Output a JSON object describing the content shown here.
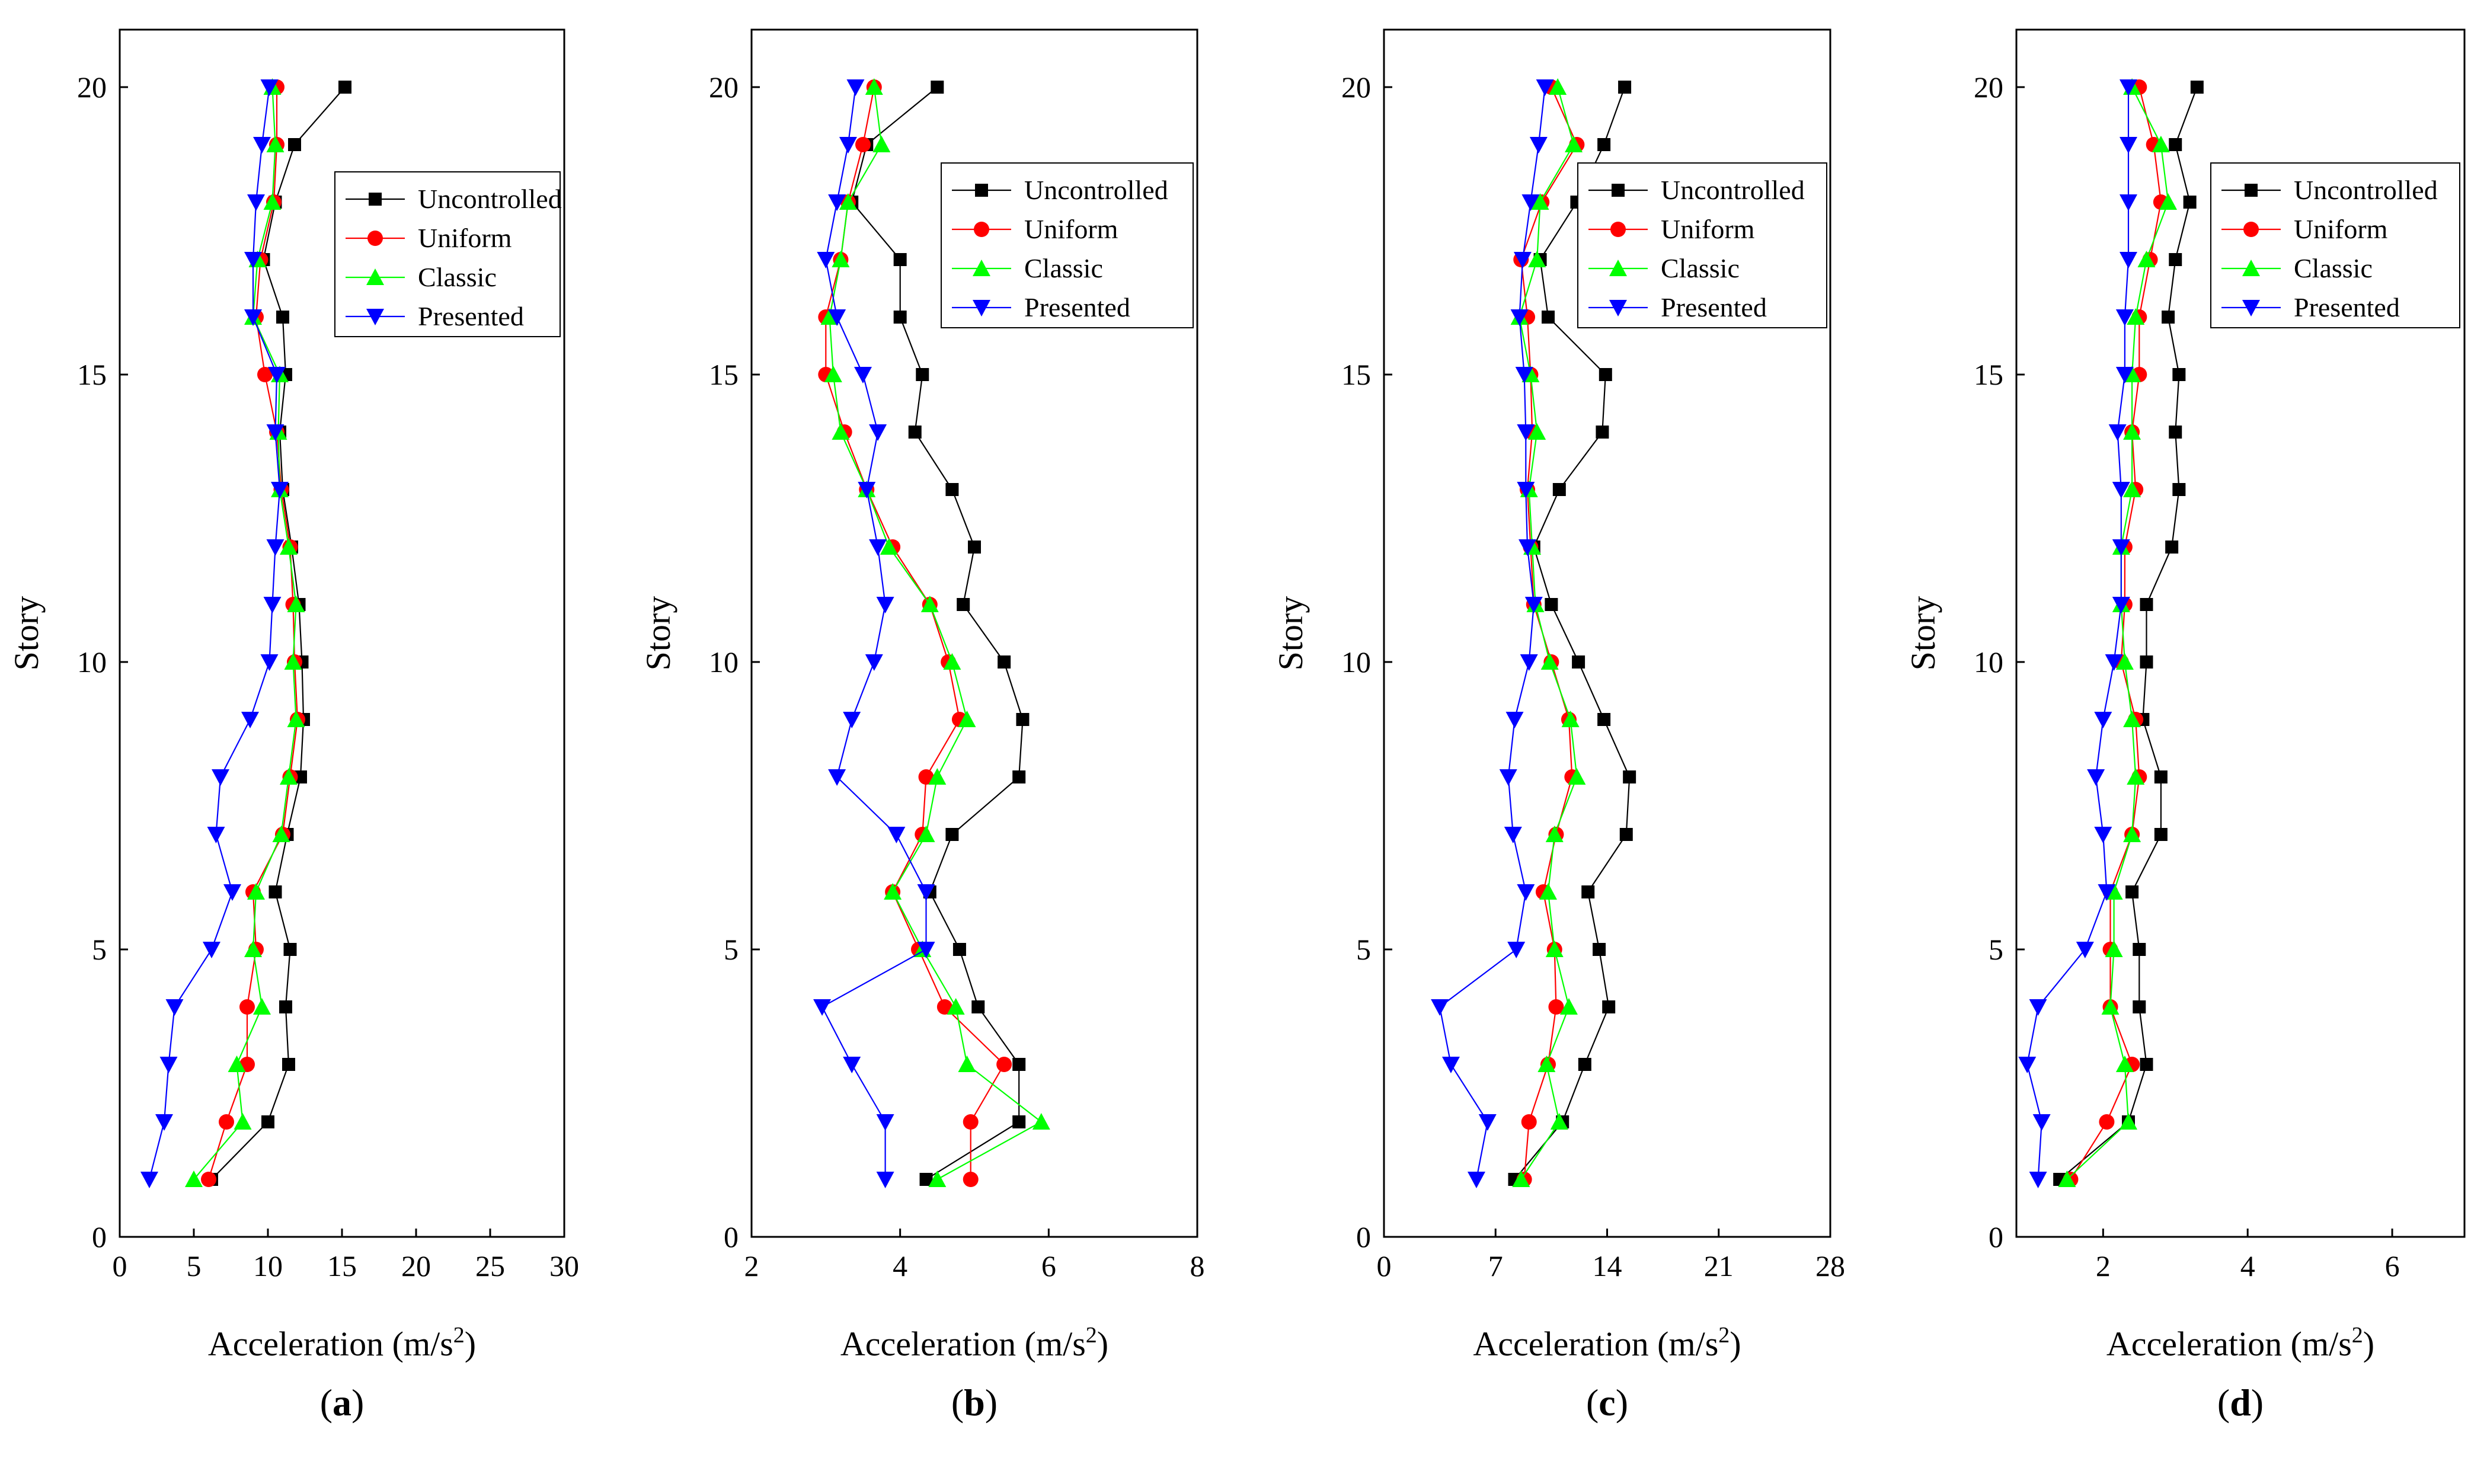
{
  "chart_data": [
    {
      "type": "line",
      "panel_label": "(a)",
      "panel_letter": "a",
      "xlabel": "Acceleration (m/s",
      "xlabel_sup": "2",
      "xlabel_close": ")",
      "ylabel": "Story",
      "xlim": [
        0,
        30
      ],
      "ylim": [
        0,
        21
      ],
      "xticks": [
        0,
        5,
        10,
        15,
        20,
        25,
        30
      ],
      "yticks": [
        0,
        5,
        10,
        15,
        20
      ],
      "legend": {
        "placement": "top-right"
      },
      "stories": [
        1,
        2,
        3,
        4,
        5,
        6,
        7,
        8,
        9,
        10,
        11,
        12,
        13,
        14,
        15,
        16,
        17,
        18,
        19,
        20
      ],
      "series": [
        {
          "name": "Uncontrolled",
          "color": "#000000",
          "marker": "square",
          "values": [
            6.2,
            10.0,
            11.4,
            11.2,
            11.5,
            10.5,
            11.3,
            12.2,
            12.4,
            12.3,
            12.1,
            11.6,
            11.0,
            10.8,
            11.2,
            11.0,
            9.7,
            10.5,
            11.8,
            15.2
          ]
        },
        {
          "name": "Uniform",
          "color": "#ff0000",
          "marker": "circle",
          "values": [
            6.0,
            7.2,
            8.6,
            8.6,
            9.2,
            9.0,
            11.0,
            11.5,
            12.0,
            11.8,
            11.7,
            11.5,
            10.9,
            10.6,
            9.8,
            9.2,
            9.5,
            10.4,
            10.6,
            10.6
          ]
        },
        {
          "name": "Classic",
          "color": "#00ff00",
          "marker": "triangle-up",
          "values": [
            5.0,
            8.3,
            7.9,
            9.6,
            9.0,
            9.2,
            10.9,
            11.4,
            11.9,
            11.7,
            11.9,
            11.4,
            10.8,
            10.7,
            10.8,
            9.0,
            9.3,
            10.3,
            10.5,
            10.3
          ]
        },
        {
          "name": "Presented",
          "color": "#0000ff",
          "marker": "triangle-down",
          "values": [
            2.0,
            3.0,
            3.3,
            3.7,
            6.2,
            7.6,
            6.5,
            6.8,
            8.8,
            10.1,
            10.3,
            10.5,
            10.8,
            10.5,
            10.6,
            9.0,
            9.0,
            9.2,
            9.6,
            10.1
          ]
        }
      ]
    },
    {
      "type": "line",
      "panel_label": "(b)",
      "panel_letter": "b",
      "xlabel": "Acceleration (m/s",
      "xlabel_sup": "2",
      "xlabel_close": ")",
      "ylabel": "Story",
      "xlim": [
        2,
        8
      ],
      "ylim": [
        0,
        21
      ],
      "xticks": [
        2,
        4,
        6,
        8
      ],
      "yticks": [
        0,
        5,
        10,
        15,
        20
      ],
      "legend": {
        "placement": "top-right"
      },
      "stories": [
        1,
        2,
        3,
        4,
        5,
        6,
        7,
        8,
        9,
        10,
        11,
        12,
        13,
        14,
        15,
        16,
        17,
        18,
        19,
        20
      ],
      "series": [
        {
          "name": "Uncontrolled",
          "color": "#000000",
          "marker": "square",
          "values": [
            4.35,
            5.6,
            5.6,
            5.05,
            4.8,
            4.4,
            4.7,
            5.6,
            5.65,
            5.4,
            4.85,
            5.0,
            4.7,
            4.2,
            4.3,
            4.0,
            4.0,
            3.35,
            3.55,
            4.5
          ]
        },
        {
          "name": "Uniform",
          "color": "#ff0000",
          "marker": "circle",
          "values": [
            4.95,
            4.95,
            5.4,
            4.6,
            4.25,
            3.9,
            4.3,
            4.35,
            4.8,
            4.65,
            4.4,
            3.9,
            3.55,
            3.25,
            3.0,
            3.0,
            3.2,
            3.3,
            3.5,
            3.65
          ]
        },
        {
          "name": "Classic",
          "color": "#00ff00",
          "marker": "triangle-up",
          "values": [
            4.5,
            5.9,
            4.9,
            4.75,
            4.3,
            3.9,
            4.35,
            4.5,
            4.9,
            4.7,
            4.4,
            3.85,
            3.55,
            3.2,
            3.1,
            3.05,
            3.2,
            3.3,
            3.75,
            3.65
          ]
        },
        {
          "name": "Presented",
          "color": "#0000ff",
          "marker": "triangle-down",
          "values": [
            3.8,
            3.8,
            3.35,
            2.95,
            4.35,
            4.35,
            3.95,
            3.15,
            3.35,
            3.65,
            3.8,
            3.7,
            3.55,
            3.7,
            3.5,
            3.15,
            3.0,
            3.15,
            3.3,
            3.4
          ]
        }
      ]
    },
    {
      "type": "line",
      "panel_label": "(c)",
      "panel_letter": "c",
      "xlabel": "Acceleration (m/s",
      "xlabel_sup": "2",
      "xlabel_close": ")",
      "ylabel": "Story",
      "xlim": [
        0,
        28
      ],
      "ylim": [
        0,
        21
      ],
      "xticks": [
        0,
        7,
        14,
        21,
        28
      ],
      "yticks": [
        0,
        5,
        10,
        15,
        20
      ],
      "legend": {
        "placement": "top-right"
      },
      "stories": [
        1,
        2,
        3,
        4,
        5,
        6,
        7,
        8,
        9,
        10,
        11,
        12,
        13,
        14,
        15,
        16,
        17,
        18,
        19,
        20
      ],
      "series": [
        {
          "name": "Uncontrolled",
          "color": "#000000",
          "marker": "square",
          "values": [
            8.2,
            11.2,
            12.6,
            14.1,
            13.5,
            12.8,
            15.2,
            15.4,
            13.8,
            12.2,
            10.5,
            9.4,
            11.0,
            13.7,
            13.9,
            10.3,
            9.8,
            12.1,
            13.8,
            15.1
          ]
        },
        {
          "name": "Uniform",
          "color": "#ff0000",
          "marker": "circle",
          "values": [
            8.8,
            9.1,
            10.3,
            10.8,
            10.7,
            10.0,
            10.8,
            11.8,
            11.6,
            10.5,
            9.4,
            9.2,
            9.0,
            9.3,
            9.2,
            9.0,
            8.6,
            9.9,
            12.1,
            10.5
          ]
        },
        {
          "name": "Classic",
          "color": "#00ff00",
          "marker": "triangle-up",
          "values": [
            8.6,
            11.0,
            10.2,
            11.6,
            10.7,
            10.3,
            10.7,
            12.1,
            11.7,
            10.4,
            9.5,
            9.3,
            9.1,
            9.6,
            9.2,
            8.5,
            9.6,
            9.8,
            11.9,
            10.9
          ]
        },
        {
          "name": "Presented",
          "color": "#0000ff",
          "marker": "triangle-down",
          "values": [
            5.8,
            6.5,
            4.2,
            3.5,
            8.3,
            8.9,
            8.1,
            7.8,
            8.2,
            9.1,
            9.4,
            9.0,
            8.9,
            8.9,
            8.8,
            8.5,
            8.7,
            9.2,
            9.7,
            10.1
          ]
        }
      ]
    },
    {
      "type": "line",
      "panel_label": "(d)",
      "panel_letter": "d",
      "xlabel": "Acceleration (m/s",
      "xlabel_sup": "2",
      "xlabel_close": ")",
      "ylabel": "Story",
      "xlim": [
        0.8,
        7
      ],
      "ylim": [
        0,
        21
      ],
      "xticks": [
        2,
        4,
        6
      ],
      "yticks": [
        0,
        5,
        10,
        15,
        20
      ],
      "legend": {
        "placement": "top-right"
      },
      "stories": [
        1,
        2,
        3,
        4,
        5,
        6,
        7,
        8,
        9,
        10,
        11,
        12,
        13,
        14,
        15,
        16,
        17,
        18,
        19,
        20
      ],
      "series": [
        {
          "name": "Uncontrolled",
          "color": "#000000",
          "marker": "square",
          "values": [
            1.4,
            2.35,
            2.6,
            2.5,
            2.5,
            2.4,
            2.8,
            2.8,
            2.55,
            2.6,
            2.6,
            2.95,
            3.05,
            3.0,
            3.05,
            2.9,
            3.0,
            3.2,
            3.0,
            3.3
          ]
        },
        {
          "name": "Uniform",
          "color": "#ff0000",
          "marker": "circle",
          "values": [
            1.55,
            2.05,
            2.4,
            2.1,
            2.1,
            2.1,
            2.4,
            2.5,
            2.45,
            2.25,
            2.3,
            2.3,
            2.45,
            2.4,
            2.5,
            2.5,
            2.65,
            2.8,
            2.7,
            2.5
          ]
        },
        {
          "name": "Classic",
          "color": "#00ff00",
          "marker": "triangle-up",
          "values": [
            1.5,
            2.35,
            2.3,
            2.1,
            2.15,
            2.15,
            2.4,
            2.45,
            2.4,
            2.3,
            2.25,
            2.25,
            2.4,
            2.4,
            2.4,
            2.45,
            2.6,
            2.9,
            2.8,
            2.4
          ]
        },
        {
          "name": "Presented",
          "color": "#0000ff",
          "marker": "triangle-down",
          "values": [
            1.1,
            1.15,
            0.95,
            1.1,
            1.75,
            2.05,
            2.0,
            1.9,
            2.0,
            2.15,
            2.25,
            2.25,
            2.25,
            2.2,
            2.3,
            2.3,
            2.35,
            2.35,
            2.35,
            2.35
          ]
        }
      ]
    }
  ]
}
